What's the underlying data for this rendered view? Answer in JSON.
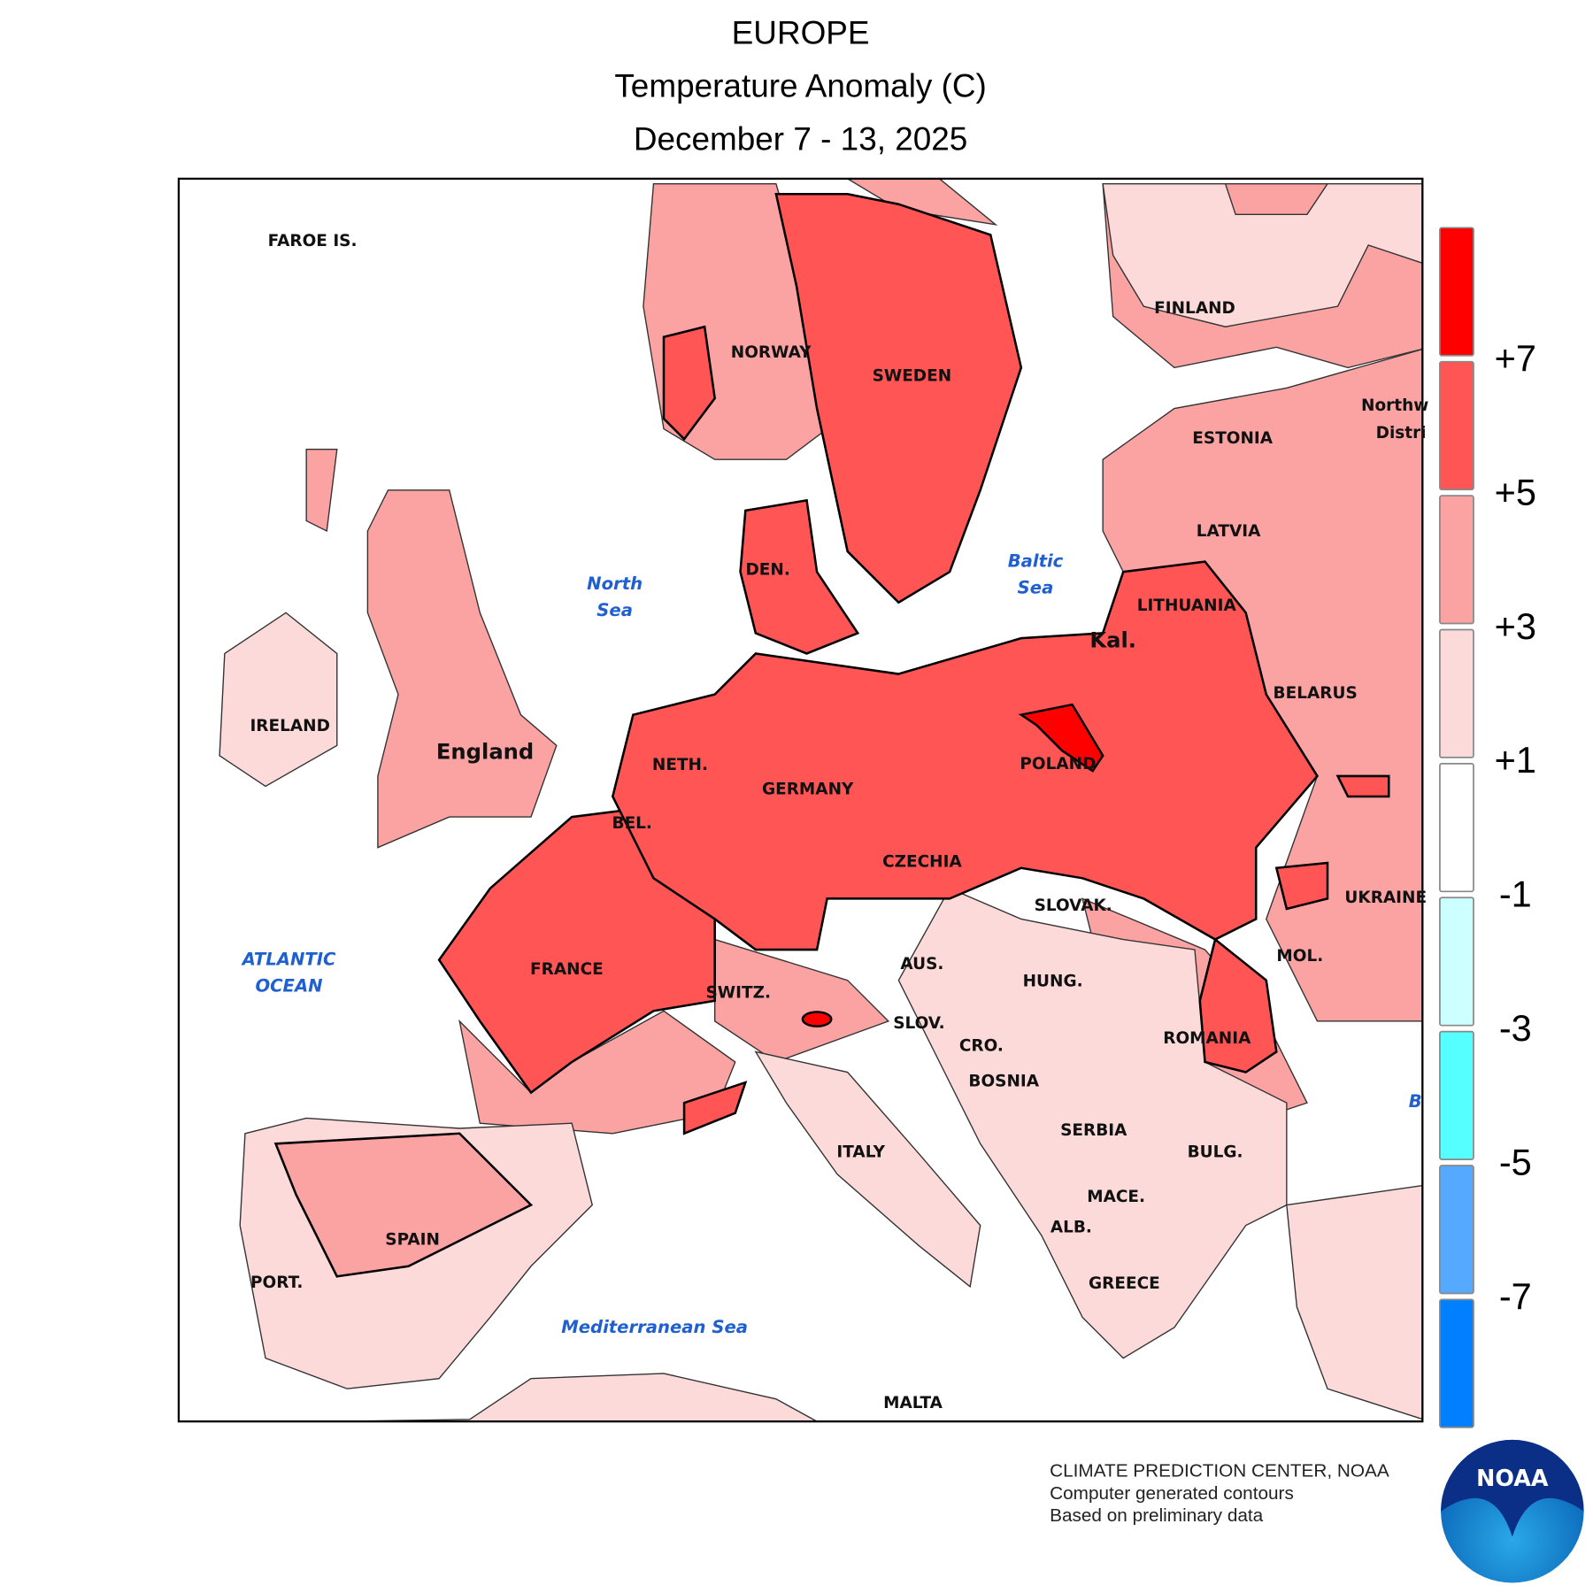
{
  "header": {
    "title": "EUROPE",
    "subtitle": "Temperature Anomaly (C)",
    "date": "December 7 - 13, 2025"
  },
  "map": {
    "labels": [
      "FAROE IS.",
      "NORWAY",
      "SWEDEN",
      "FINLAND",
      "ESTONIA",
      "LATVIA",
      "LITHUANIA",
      "Kal.",
      "BELARUS",
      "IRELAND",
      "England",
      "DEN.",
      "NETH.",
      "BEL.",
      "GERMANY",
      "POLAND",
      "CZECHIA",
      "SLOVAK.",
      "FRANCE",
      "SWITZ.",
      "AUS.",
      "SLOV.",
      "HUNG.",
      "CRO.",
      "BOSNIA",
      "SERBIA",
      "ROMANIA",
      "MOL.",
      "UKRAINE",
      "BULG.",
      "MACE.",
      "ALB.",
      "GREECE",
      "ITALY",
      "SPAIN",
      "PORT.",
      "MALTA",
      "Northw",
      "Distri"
    ],
    "seas": [
      "North",
      "Sea",
      "Baltic",
      "Sea",
      "ATLANTIC",
      "OCEAN",
      "Mediterranean Sea",
      "B"
    ]
  },
  "legend": {
    "colors": [
      "#ff0000",
      "#ff5555",
      "#fba3a3",
      "#fddada",
      "#ffffff",
      "#ccffff",
      "#55ffff",
      "#55aaff",
      "#0080ff"
    ],
    "labels": [
      "+7",
      "+5",
      "+3",
      "+1",
      "-1",
      "-3",
      "-5",
      "-7"
    ]
  },
  "footer": {
    "lines": [
      "CLIMATE PREDICTION CENTER, NOAA",
      "Computer generated contours",
      "Based on preliminary data"
    ],
    "logo": "NOAA"
  }
}
